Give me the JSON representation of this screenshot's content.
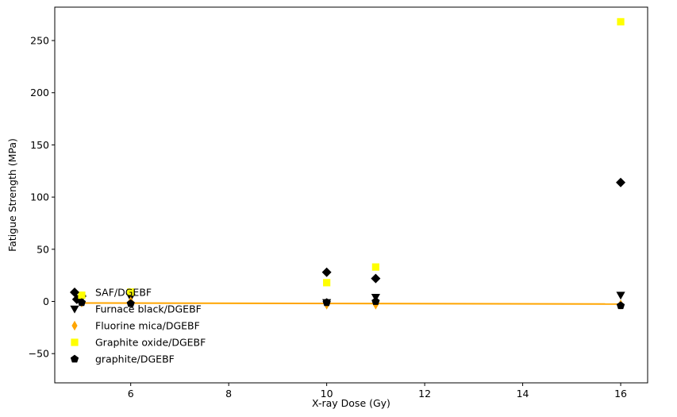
{
  "chart_data": {
    "type": "scatter",
    "title": "",
    "xlabel": "X-ray Dose (Gy)",
    "ylabel": "Fatigue Strength (MPa)",
    "xlim": [
      4.45,
      16.55
    ],
    "ylim": [
      -78,
      282
    ],
    "xticks": [
      6,
      8,
      10,
      12,
      14,
      16
    ],
    "yticks": [
      -50,
      0,
      50,
      100,
      150,
      200,
      250
    ],
    "grid": false,
    "legend_position": "lower-left",
    "series": [
      {
        "name": "SAF/DGEBF",
        "marker": "diamond",
        "color": "#000000",
        "points": [
          [
            4.9,
            2
          ],
          [
            5.0,
            5
          ],
          [
            6.0,
            7
          ],
          [
            10.0,
            28
          ],
          [
            11.0,
            22
          ],
          [
            16.0,
            114
          ]
        ]
      },
      {
        "name": "Furnace black/DGEBF",
        "marker": "triangle-down",
        "color": "#000000",
        "points": [
          [
            5.0,
            3
          ],
          [
            6.0,
            4
          ],
          [
            10.0,
            -1
          ],
          [
            11.0,
            4
          ],
          [
            16.0,
            6
          ]
        ]
      },
      {
        "name": "Fluorine mica/DGEBF",
        "marker": "thin-diamond",
        "color": "#ffa500",
        "points": [
          [
            5.0,
            -1
          ],
          [
            6.0,
            0
          ],
          [
            10.0,
            -3
          ],
          [
            11.0,
            -3
          ],
          [
            16.0,
            -3
          ]
        ]
      },
      {
        "name": "Graphite oxide/DGEBF",
        "marker": "square",
        "color": "#ffff00",
        "points": [
          [
            5.0,
            6
          ],
          [
            6.0,
            9
          ],
          [
            10.0,
            18
          ],
          [
            11.0,
            33
          ],
          [
            16.0,
            268
          ]
        ]
      },
      {
        "name": "graphite/DGEBF",
        "marker": "pentagon",
        "color": "#000000",
        "points": [
          [
            5.0,
            -1
          ],
          [
            6.0,
            -2
          ],
          [
            10.0,
            -1
          ],
          [
            11.0,
            0
          ],
          [
            16.0,
            -4
          ]
        ]
      }
    ],
    "fit_line": {
      "color": "#ffa500",
      "points": [
        [
          5.0,
          -1.5
        ],
        [
          16.0,
          -2.5
        ]
      ]
    }
  }
}
